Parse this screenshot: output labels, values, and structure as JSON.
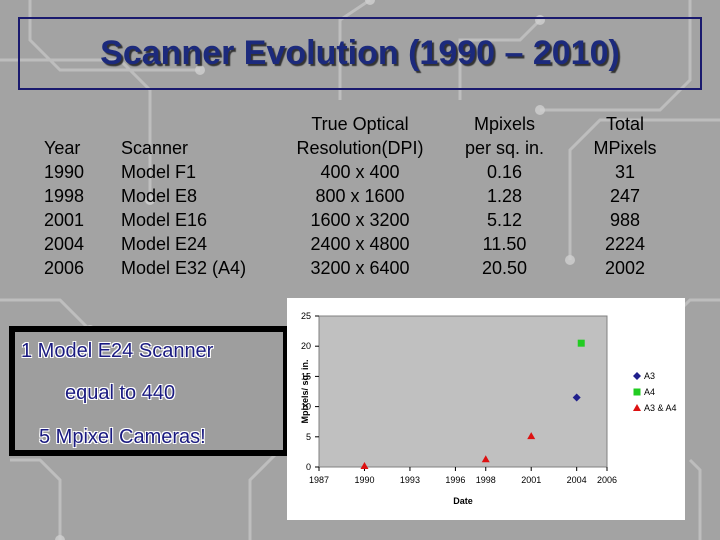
{
  "slide": {
    "title": "Scanner Evolution (1990 – 2010)"
  },
  "table": {
    "headers": {
      "year": "Year",
      "scanner": "Scanner",
      "resolution_line1": "True Optical",
      "resolution_line2": "Resolution(DPI)",
      "mpixels_line1": "Mpixels",
      "mpixels_line2": "per sq. in.",
      "total_line1": "Total",
      "total_line2": "MPixels"
    },
    "rows": [
      {
        "year": "1990",
        "scanner": "Model F1",
        "resolution": "400 x 400",
        "mpixels": "0.16",
        "total": "31"
      },
      {
        "year": "1998",
        "scanner": "Model E8",
        "resolution": "800 x 1600",
        "mpixels": "1.28",
        "total": "247"
      },
      {
        "year": "2001",
        "scanner": "Model E16",
        "resolution": "1600 x 3200",
        "mpixels": "5.12",
        "total": "988"
      },
      {
        "year": "2004",
        "scanner": "Model E24",
        "resolution": "2400 x 4800",
        "mpixels": "11.50",
        "total": "2224"
      },
      {
        "year": "2006",
        "scanner": "Model E32 (A4)",
        "resolution": "3200 x 6400",
        "mpixels": "20.50",
        "total": "2002"
      }
    ]
  },
  "callout": {
    "line1": "1 Model E24 Scanner",
    "line2": "equal to 440",
    "line3": "5 Mpixel   Cameras!"
  },
  "chart_data": {
    "type": "scatter",
    "xlabel": "Date",
    "ylabel": "Mpixels/ sq. in.",
    "xlim": [
      1987,
      2006
    ],
    "ylim": [
      0,
      25
    ],
    "xticks": [
      "1987",
      "1990",
      "1993",
      "1996",
      "1998",
      "2001",
      "2004",
      "2006"
    ],
    "yticks": [
      "0",
      "5",
      "10",
      "15",
      "20",
      "25"
    ],
    "grid": false,
    "legend": "right",
    "series": [
      {
        "name": "A3",
        "color": "#1f1f8c",
        "marker": "diamond",
        "points": [
          {
            "x": 2004,
            "y": 11.5
          }
        ]
      },
      {
        "name": "A4",
        "color": "#22cc22",
        "marker": "square",
        "points": [
          {
            "x": 2004.3,
            "y": 20.5
          }
        ]
      },
      {
        "name": "A3 & A4",
        "color": "#dd1111",
        "marker": "triangle",
        "points": [
          {
            "x": 1990,
            "y": 0.16
          },
          {
            "x": 1998,
            "y": 1.28
          },
          {
            "x": 2001,
            "y": 5.12
          }
        ]
      }
    ]
  }
}
